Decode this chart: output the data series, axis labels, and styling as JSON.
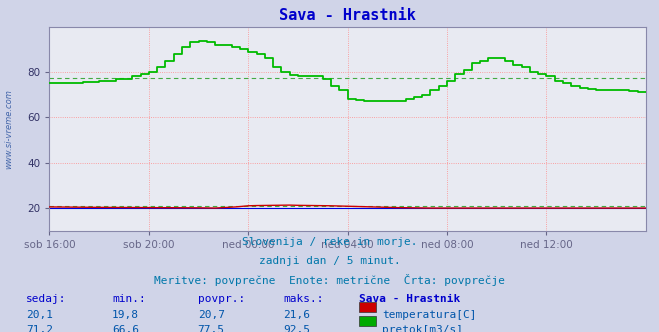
{
  "title": "Sava - Hrastnik",
  "background_color": "#d0d4e8",
  "plot_bg_color": "#e8eaf2",
  "title_color": "#0000cc",
  "title_fontsize": 11,
  "watermark": "www.si-vreme.com",
  "xlim": [
    0,
    288
  ],
  "ylim": [
    10,
    100
  ],
  "yticks": [
    20,
    40,
    60,
    80
  ],
  "xtick_labels": [
    "sob 16:00",
    "sob 20:00",
    "ned 00:00",
    "ned 04:00",
    "ned 08:00",
    "ned 12:00"
  ],
  "xtick_positions": [
    0,
    48,
    96,
    144,
    192,
    240
  ],
  "grid_color": "#ff8888",
  "grid_style": ":",
  "avg_flow_line": 77.5,
  "avg_temp_line": 20.7,
  "footer_lines": [
    "Slovenija / reke in morje.",
    "zadnji dan / 5 minut.",
    "Meritve: povprečne  Enote: metrične  Črta: povprečje"
  ],
  "footer_color": "#0077aa",
  "footer_fontsize": 8,
  "table_headers": [
    "sedaj:",
    "min.:",
    "povpr.:",
    "maks.:",
    "Sava - Hrastnik"
  ],
  "table_header_color": "#0000cc",
  "table_row1": [
    "20,1",
    "19,8",
    "20,7",
    "21,6"
  ],
  "table_row2": [
    "71,2",
    "66,6",
    "77,5",
    "92,5"
  ],
  "table_color": "#0055aa",
  "legend_labels": [
    "temperatura[C]",
    "pretok[m3/s]"
  ],
  "legend_colors": [
    "#cc0000",
    "#00aa00"
  ],
  "temp_color": "#cc0000",
  "flow_color": "#00bb00",
  "avg_line_color": "#44aa44",
  "blue_line_y": 20,
  "border_color": "#8888aa",
  "flow_points": [
    [
      0,
      75
    ],
    [
      8,
      75
    ],
    [
      16,
      75.5
    ],
    [
      24,
      76
    ],
    [
      32,
      77
    ],
    [
      40,
      78
    ],
    [
      44,
      79
    ],
    [
      48,
      80
    ],
    [
      52,
      82
    ],
    [
      56,
      85
    ],
    [
      60,
      88
    ],
    [
      64,
      91
    ],
    [
      68,
      93
    ],
    [
      72,
      93.5
    ],
    [
      76,
      93
    ],
    [
      80,
      92
    ],
    [
      84,
      92
    ],
    [
      88,
      91
    ],
    [
      92,
      90
    ],
    [
      96,
      89
    ],
    [
      100,
      88
    ],
    [
      104,
      86
    ],
    [
      108,
      82
    ],
    [
      112,
      80
    ],
    [
      116,
      78.5
    ],
    [
      120,
      78
    ],
    [
      124,
      78
    ],
    [
      128,
      78
    ],
    [
      132,
      77
    ],
    [
      136,
      74
    ],
    [
      140,
      72
    ],
    [
      144,
      68
    ],
    [
      148,
      67.5
    ],
    [
      152,
      67
    ],
    [
      156,
      67
    ],
    [
      160,
      67
    ],
    [
      164,
      67
    ],
    [
      168,
      67
    ],
    [
      172,
      68
    ],
    [
      176,
      69
    ],
    [
      180,
      70
    ],
    [
      184,
      72
    ],
    [
      188,
      74
    ],
    [
      192,
      76
    ],
    [
      196,
      79
    ],
    [
      200,
      81
    ],
    [
      204,
      84
    ],
    [
      208,
      85
    ],
    [
      212,
      86
    ],
    [
      216,
      86
    ],
    [
      220,
      85
    ],
    [
      224,
      83
    ],
    [
      228,
      82
    ],
    [
      232,
      80
    ],
    [
      236,
      79
    ],
    [
      240,
      78
    ],
    [
      244,
      76
    ],
    [
      248,
      75
    ],
    [
      252,
      74
    ],
    [
      256,
      73
    ],
    [
      260,
      72.5
    ],
    [
      264,
      72
    ],
    [
      268,
      72
    ],
    [
      272,
      72
    ],
    [
      276,
      72
    ],
    [
      280,
      71.5
    ],
    [
      284,
      71
    ],
    [
      288,
      71
    ]
  ],
  "temp_points": [
    [
      0,
      20.5
    ],
    [
      24,
      20.3
    ],
    [
      48,
      20.2
    ],
    [
      72,
      20.1
    ],
    [
      80,
      20.0
    ],
    [
      90,
      20.5
    ],
    [
      96,
      21.0
    ],
    [
      100,
      21.1
    ],
    [
      108,
      21.2
    ],
    [
      116,
      21.3
    ],
    [
      120,
      21.2
    ],
    [
      128,
      21.1
    ],
    [
      136,
      21.0
    ],
    [
      144,
      20.8
    ],
    [
      152,
      20.6
    ],
    [
      160,
      20.4
    ],
    [
      168,
      20.2
    ],
    [
      176,
      20.1
    ],
    [
      184,
      20.0
    ],
    [
      192,
      20.0
    ],
    [
      200,
      20.0
    ],
    [
      208,
      20.0
    ],
    [
      216,
      20.0
    ],
    [
      224,
      20.0
    ],
    [
      232,
      20.0
    ],
    [
      240,
      20.0
    ],
    [
      248,
      20.0
    ],
    [
      256,
      20.0
    ],
    [
      264,
      20.0
    ],
    [
      272,
      20.0
    ],
    [
      280,
      20.0
    ],
    [
      288,
      20.0
    ]
  ]
}
